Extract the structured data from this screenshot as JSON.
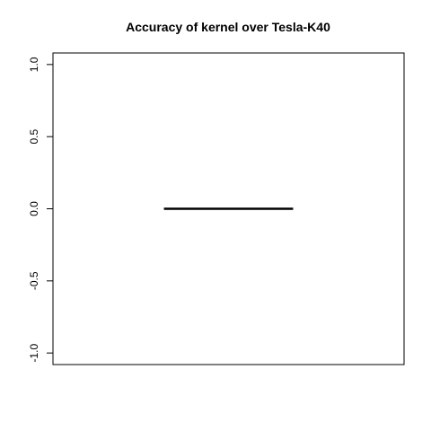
{
  "chart_data": {
    "type": "box",
    "title": "Accuracy of kernel over Tesla-K40",
    "xlabel": "",
    "ylabel": "",
    "ylim": [
      -1.08,
      1.08
    ],
    "yticks": [
      -1.0,
      -0.5,
      0.0,
      0.5,
      1.0
    ],
    "ytick_labels": [
      "-1.0",
      "-0.5",
      "0.0",
      "0.5",
      "1.0"
    ],
    "boxes": [
      {
        "min": 0.0,
        "q1": 0.0,
        "median": 0.0,
        "q3": 0.0,
        "max": 0.0
      }
    ],
    "grid": false,
    "colors": {
      "line": "#000000",
      "background": "#ffffff"
    }
  }
}
